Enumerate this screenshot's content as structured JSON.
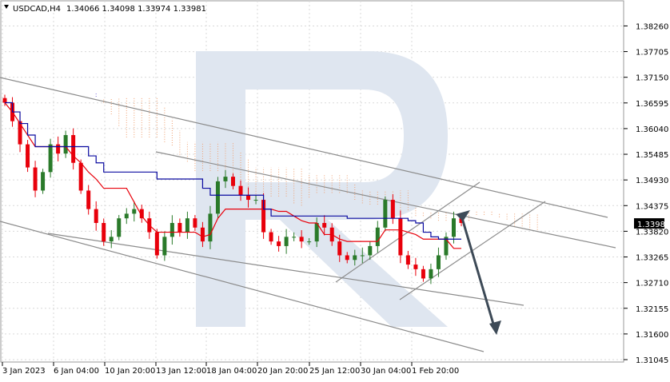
{
  "header": {
    "symbol": "USDCAD,H4",
    "ohlc": "1.34066 1.34098 1.33974 1.33981"
  },
  "price_label": "1.33981",
  "colors": {
    "bull": "#2a7a2a",
    "bear": "#e8000b",
    "tenkan": "#e8000b",
    "kijun": "#0a0aa0",
    "cloud_a": "#7e6edb",
    "cloud_b": "#f0a070",
    "trend": "#8c8c8c",
    "arrow": "#3d4a57",
    "watermark": "#dfe6f0",
    "grid": "#d9d9d9"
  },
  "chart_data": {
    "type": "candlestick",
    "title": "USDCAD,H4",
    "ylim": [
      1.31045,
      1.38475
    ],
    "y_ticks": [
      "1.38260",
      "1.37705",
      "1.37150",
      "1.36595",
      "1.36040",
      "1.35485",
      "1.34930",
      "1.34375",
      "1.33820",
      "1.33265",
      "1.32710",
      "1.32155",
      "1.31600",
      "1.31045"
    ],
    "x_ticks": [
      "3 Jan 2023",
      "6 Jan 04:00",
      "10 Jan 20:00",
      "13 Jan 12:00",
      "18 Jan 04:00",
      "20 Jan 20:00",
      "25 Jan 12:00",
      "30 Jan 04:00",
      "1 Feb 20:00"
    ],
    "grid": true,
    "close_series_estimate": [
      1.366,
      1.362,
      1.357,
      1.352,
      1.347,
      1.351,
      1.357,
      1.355,
      1.359,
      1.353,
      1.347,
      1.343,
      1.34,
      1.336,
      1.337,
      1.341,
      1.342,
      1.343,
      1.341,
      1.338,
      1.333,
      1.337,
      1.34,
      1.338,
      1.341,
      1.339,
      1.336,
      1.342,
      1.349,
      1.35,
      1.348,
      1.346,
      1.345,
      1.345,
      1.338,
      1.336,
      1.335,
      1.337,
      1.337,
      1.336,
      1.336,
      1.34,
      1.339,
      1.336,
      1.333,
      1.332,
      1.333,
      1.333,
      1.335,
      1.339,
      1.345,
      1.341,
      1.333,
      1.331,
      1.33,
      1.328,
      1.33,
      1.333,
      1.337,
      1.341,
      1.34
    ],
    "current_price": 1.33981,
    "indicators": [
      "Ichimoku Kinko Hyo"
    ],
    "forecast": "bearish arrow from about 1.3412 to about 1.3168"
  }
}
